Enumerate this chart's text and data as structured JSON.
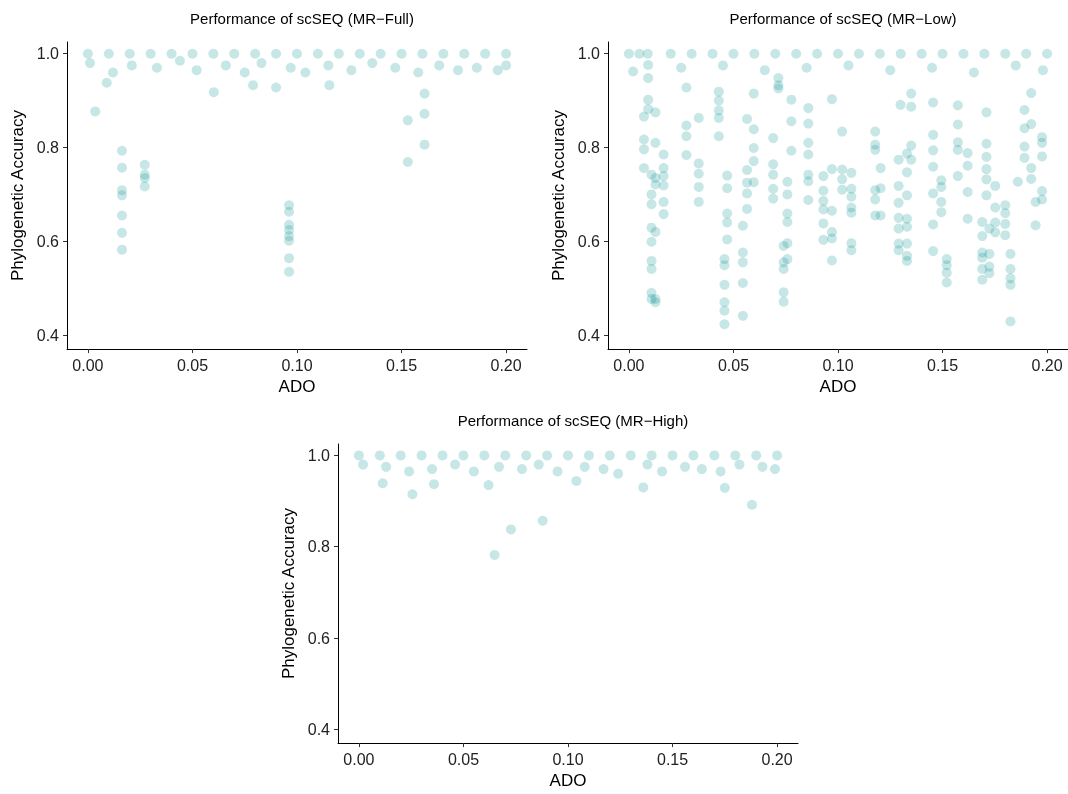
{
  "chart_data": [
    {
      "type": "scatter",
      "title": "Performance of scSEQ (MR−Full)",
      "xlabel": "ADO",
      "ylabel": "Phylogenetic Accuracy",
      "marker": "circle",
      "grid": false,
      "xlim": [
        -0.01,
        0.21
      ],
      "ylim": [
        0.37,
        1.025
      ],
      "xticks": [
        {
          "value": 0,
          "label": "0.00"
        },
        {
          "value": 0.05,
          "label": "0.05"
        },
        {
          "value": 0.1,
          "label": "0.10"
        },
        {
          "value": 0.15,
          "label": "0.15"
        },
        {
          "value": 0.2,
          "label": "0.20"
        }
      ],
      "yticks": [
        {
          "value": 0.4,
          "label": "0.4"
        },
        {
          "value": 0.6,
          "label": "0.6"
        },
        {
          "value": 0.8,
          "label": "0.8"
        },
        {
          "value": 1,
          "label": "1.0"
        }
      ],
      "series": [
        {
          "color": "#008b8b",
          "x": [
            0,
            0.01,
            0.02,
            0.03,
            0.04,
            0.05,
            0.06,
            0.07,
            0.08,
            0.09,
            0.1,
            0.11,
            0.12,
            0.13,
            0.14,
            0.15,
            0.16,
            0.17,
            0.18,
            0.19,
            0.2,
            0.001,
            0.012,
            0.021,
            0.033,
            0.044,
            0.052,
            0.066,
            0.075,
            0.083,
            0.097,
            0.104,
            0.115,
            0.126,
            0.136,
            0.147,
            0.158,
            0.168,
            0.177,
            0.186,
            0.196,
            0.2,
            0.0035,
            0.0163,
            0.0163,
            0.0163,
            0.0163,
            0.0163,
            0.0163,
            0.0163,
            0.0272,
            0.0272,
            0.0272,
            0.0272,
            0.0962,
            0.0962,
            0.0962,
            0.0962,
            0.0962,
            0.0962,
            0.0962,
            0.0962,
            0.153,
            0.153,
            0.161,
            0.161,
            0.161,
            0.0602,
            0.09,
            0.1155,
            0.009,
            0.079
          ],
          "values": [
            1,
            1,
            1,
            1,
            1,
            1,
            1,
            1,
            1,
            1,
            1,
            1,
            1,
            1,
            1,
            1,
            1,
            1,
            1,
            1,
            1,
            0.98,
            0.96,
            0.975,
            0.97,
            0.985,
            0.965,
            0.975,
            0.96,
            0.98,
            0.97,
            0.96,
            0.975,
            0.965,
            0.98,
            0.97,
            0.96,
            0.975,
            0.965,
            0.97,
            0.965,
            0.975,
            0.877,
            0.793,
            0.757,
            0.709,
            0.698,
            0.655,
            0.618,
            0.582,
            0.763,
            0.742,
            0.735,
            0.717,
            0.677,
            0.663,
            0.635,
            0.624,
            0.611,
            0.601,
            0.564,
            0.535,
            0.858,
            0.769,
            0.915,
            0.872,
            0.806,
            0.918,
            0.928,
            0.933,
            0.938,
            0.933
          ]
        }
      ]
    },
    {
      "type": "scatter",
      "title": "Performance of scSEQ (MR−Low)",
      "xlabel": "ADO",
      "ylabel": "Phylogenetic Accuracy",
      "marker": "circle",
      "grid": false,
      "xlim": [
        -0.01,
        0.21
      ],
      "ylim": [
        0.37,
        1.025
      ],
      "xticks": [
        {
          "value": 0,
          "label": "0.00"
        },
        {
          "value": 0.05,
          "label": "0.05"
        },
        {
          "value": 0.1,
          "label": "0.10"
        },
        {
          "value": 0.15,
          "label": "0.15"
        },
        {
          "value": 0.2,
          "label": "0.20"
        }
      ],
      "yticks": [
        {
          "value": 0.4,
          "label": "0.4"
        },
        {
          "value": 0.6,
          "label": "0.6"
        },
        {
          "value": 0.8,
          "label": "0.8"
        },
        {
          "value": 1,
          "label": "1.0"
        }
      ],
      "series": [
        {
          "color": "#008b8b",
          "x": [
            0,
            0.005,
            0.009,
            0.02,
            0.03,
            0.04,
            0.05,
            0.06,
            0.07,
            0.08,
            0.09,
            0.1,
            0.11,
            0.12,
            0.13,
            0.14,
            0.15,
            0.16,
            0.17,
            0.18,
            0.19,
            0.2,
            0.002,
            0.025,
            0.045,
            0.065,
            0.085,
            0.105,
            0.125,
            0.145,
            0.165,
            0.185,
            0.198,
            0.0072,
            0.0072,
            0.0072,
            0.0072,
            0.0092,
            0.0092,
            0.0092,
            0.0092,
            0.0108,
            0.0108,
            0.0108,
            0.0108,
            0.0108,
            0.0108,
            0.0108,
            0.0108,
            0.0108,
            0.0127,
            0.0127,
            0.0127,
            0.0127,
            0.0127,
            0.0127,
            0.0127,
            0.0166,
            0.0166,
            0.0166,
            0.0166,
            0.0166,
            0.0166,
            0.0275,
            0.0275,
            0.0275,
            0.0275,
            0.0334,
            0.0334,
            0.0334,
            0.0334,
            0.0334,
            0.043,
            0.043,
            0.043,
            0.043,
            0.043,
            0.0457,
            0.0457,
            0.0457,
            0.0457,
            0.0457,
            0.0457,
            0.047,
            0.047,
            0.047,
            0.047,
            0.047,
            0.0545,
            0.0545,
            0.0545,
            0.0545,
            0.0545,
            0.0565,
            0.0565,
            0.0565,
            0.0565,
            0.0565,
            0.0597,
            0.0597,
            0.0597,
            0.0597,
            0.0597,
            0.069,
            0.069,
            0.069,
            0.069,
            0.069,
            0.0715,
            0.0715,
            0.0715,
            0.074,
            0.074,
            0.074,
            0.074,
            0.074,
            0.0758,
            0.0758,
            0.0758,
            0.0758,
            0.0758,
            0.0758,
            0.0777,
            0.0777,
            0.0777,
            0.0858,
            0.0858,
            0.0858,
            0.0858,
            0.0858,
            0.0858,
            0.0858,
            0.093,
            0.093,
            0.093,
            0.093,
            0.093,
            0.093,
            0.0971,
            0.0971,
            0.0971,
            0.0971,
            0.0971,
            0.0971,
            0.102,
            0.102,
            0.102,
            0.102,
            0.1064,
            0.1064,
            0.1064,
            0.1064,
            0.1064,
            0.1064,
            0.1064,
            0.1178,
            0.1178,
            0.1178,
            0.1178,
            0.1178,
            0.1178,
            0.1204,
            0.1204,
            0.1204,
            0.129,
            0.129,
            0.129,
            0.129,
            0.129,
            0.129,
            0.129,
            0.1299,
            0.133,
            0.133,
            0.133,
            0.133,
            0.133,
            0.133,
            0.133,
            0.133,
            0.135,
            0.135,
            0.135,
            0.135,
            0.1455,
            0.1455,
            0.1455,
            0.1455,
            0.1455,
            0.1455,
            0.1455,
            0.1494,
            0.1494,
            0.1494,
            0.1494,
            0.152,
            0.152,
            0.152,
            0.152,
            0.1573,
            0.1573,
            0.1573,
            0.1573,
            0.1573,
            0.162,
            0.162,
            0.162,
            0.162,
            0.169,
            0.169,
            0.169,
            0.169,
            0.169,
            0.169,
            0.171,
            0.171,
            0.171,
            0.171,
            0.171,
            0.171,
            0.1724,
            0.1724,
            0.1724,
            0.1724,
            0.1752,
            0.1752,
            0.1752,
            0.1752,
            0.18,
            0.18,
            0.18,
            0.18,
            0.1825,
            0.1825,
            0.1825,
            0.1825,
            0.1825,
            0.186,
            0.1892,
            0.1892,
            0.1892,
            0.1892,
            0.1924,
            0.1924,
            0.1924,
            0.1924,
            0.1945,
            0.1945,
            0.1976,
            0.1976,
            0.1976,
            0.1976,
            0.1976
          ],
          "values": [
            1,
            1,
            1,
            1,
            1,
            1,
            1,
            1,
            1,
            1,
            1,
            1,
            1,
            1,
            1,
            1,
            1,
            1,
            1,
            1,
            1,
            1,
            0.962,
            0.97,
            0.975,
            0.965,
            0.97,
            0.975,
            0.965,
            0.97,
            0.96,
            0.975,
            0.965,
            0.866,
            0.817,
            0.796,
            0.756,
            0.976,
            0.948,
            0.902,
            0.882,
            0.742,
            0.7,
            0.679,
            0.629,
            0.599,
            0.558,
            0.541,
            0.49,
            0.477,
            0.875,
            0.81,
            0.735,
            0.721,
            0.62,
            0.477,
            0.47,
            0.785,
            0.756,
            0.739,
            0.719,
            0.684,
            0.658,
            0.847,
            0.824,
            0.784,
            0.928,
            0.766,
            0.744,
            0.716,
            0.684,
            0.863,
            0.919,
            0.9,
            0.879,
            0.863,
            0.824,
            0.562,
            0.549,
            0.507,
            0.47,
            0.452,
            0.423,
            0.74,
            0.713,
            0.659,
            0.64,
            0.604,
            0.633,
            0.576,
            0.555,
            0.511,
            0.441,
            0.861,
            0.752,
            0.725,
            0.702,
            0.669,
            0.915,
            0.839,
            0.799,
            0.771,
            0.726,
            0.82,
            0.764,
            0.742,
            0.712,
            0.691,
            0.948,
            0.933,
            0.926,
            0.59,
            0.555,
            0.541,
            0.491,
            0.471,
            0.727,
            0.7,
            0.659,
            0.641,
            0.596,
            0.562,
            0.902,
            0.856,
            0.793,
            0.884,
            0.851,
            0.81,
            0.785,
            0.742,
            0.728,
            0.688,
            0.739,
            0.708,
            0.686,
            0.668,
            0.638,
            0.603,
            0.903,
            0.754,
            0.665,
            0.62,
            0.606,
            0.559,
            0.834,
            0.753,
            0.732,
            0.71,
            0.746,
            0.712,
            0.695,
            0.672,
            0.661,
            0.596,
            0.581,
            0.834,
            0.806,
            0.795,
            0.709,
            0.689,
            0.655,
            0.756,
            0.713,
            0.655,
            0.774,
            0.718,
            0.682,
            0.65,
            0.627,
            0.595,
            0.581,
            0.891,
            0.787,
            0.747,
            0.698,
            0.648,
            0.631,
            0.595,
            0.569,
            0.558,
            0.915,
            0.887,
            0.804,
            0.774,
            0.896,
            0.827,
            0.794,
            0.759,
            0.702,
            0.636,
            0.579,
            0.73,
            0.716,
            0.684,
            0.662,
            0.562,
            0.549,
            0.533,
            0.512,
            0.89,
            0.849,
            0.811,
            0.795,
            0.739,
            0.788,
            0.761,
            0.705,
            0.648,
            0.641,
            0.611,
            0.576,
            0.565,
            0.541,
            0.518,
            0.875,
            0.808,
            0.78,
            0.754,
            0.732,
            0.698,
            0.627,
            0.573,
            0.546,
            0.532,
            0.718,
            0.672,
            0.64,
            0.619,
            0.677,
            0.66,
            0.637,
            0.613,
            0.573,
            0.541,
            0.521,
            0.507,
            0.429,
            0.727,
            0.88,
            0.841,
            0.802,
            0.778,
            0.916,
            0.85,
            0.756,
            0.733,
            0.684,
            0.634,
            0.822,
            0.81,
            0.781,
            0.707,
            0.689
          ]
        }
      ]
    },
    {
      "type": "scatter",
      "title": "Performance of scSEQ (MR−High)",
      "xlabel": "ADO",
      "ylabel": "Phylogenetic Accuracy",
      "marker": "circle",
      "grid": false,
      "xlim": [
        -0.01,
        0.21
      ],
      "ylim": [
        0.37,
        1.025
      ],
      "xticks": [
        {
          "value": 0,
          "label": "0.00"
        },
        {
          "value": 0.05,
          "label": "0.05"
        },
        {
          "value": 0.1,
          "label": "0.10"
        },
        {
          "value": 0.15,
          "label": "0.15"
        },
        {
          "value": 0.2,
          "label": "0.20"
        }
      ],
      "yticks": [
        {
          "value": 0.4,
          "label": "0.4"
        },
        {
          "value": 0.6,
          "label": "0.6"
        },
        {
          "value": 0.8,
          "label": "0.8"
        },
        {
          "value": 1,
          "label": "1.0"
        }
      ],
      "series": [
        {
          "color": "#008b8b",
          "x": [
            0,
            0.01,
            0.02,
            0.03,
            0.04,
            0.05,
            0.06,
            0.07,
            0.08,
            0.09,
            0.1,
            0.11,
            0.12,
            0.13,
            0.14,
            0.15,
            0.16,
            0.17,
            0.18,
            0.19,
            0.2,
            0.002,
            0.013,
            0.024,
            0.035,
            0.046,
            0.055,
            0.067,
            0.078,
            0.086,
            0.095,
            0.108,
            0.117,
            0.124,
            0.138,
            0.145,
            0.156,
            0.164,
            0.173,
            0.182,
            0.193,
            0.199,
            0.0256,
            0.0649,
            0.0727,
            0.0879,
            0.188,
            0.136,
            0.175,
            0.062,
            0.104,
            0.0114,
            0.0359
          ],
          "values": [
            1,
            1,
            1,
            1,
            1,
            1,
            1,
            1,
            1,
            1,
            1,
            1,
            1,
            1,
            1,
            1,
            1,
            1,
            1,
            1,
            1,
            0.98,
            0.975,
            0.965,
            0.97,
            0.98,
            0.965,
            0.975,
            0.97,
            0.98,
            0.965,
            0.975,
            0.97,
            0.96,
            0.98,
            0.965,
            0.975,
            0.97,
            0.965,
            0.98,
            0.975,
            0.97,
            0.915,
            0.782,
            0.838,
            0.857,
            0.892,
            0.93,
            0.929,
            0.935,
            0.944,
            0.939,
            0.937
          ]
        }
      ]
    }
  ]
}
